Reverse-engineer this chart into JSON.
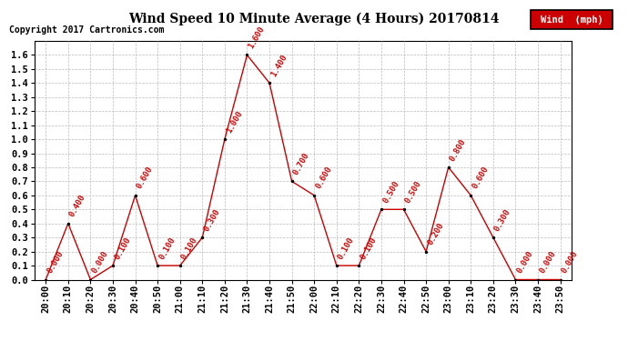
{
  "title": "Wind Speed 10 Minute Average (4 Hours) 20170814",
  "copyright": "Copyright 2017 Cartronics.com",
  "legend_label": "Wind  (mph)",
  "x_labels": [
    "20:00",
    "20:10",
    "20:20",
    "20:30",
    "20:40",
    "20:50",
    "21:00",
    "21:10",
    "21:20",
    "21:30",
    "21:40",
    "21:50",
    "22:00",
    "22:10",
    "22:20",
    "22:30",
    "22:40",
    "22:50",
    "23:00",
    "23:10",
    "23:20",
    "23:30",
    "23:40",
    "23:50"
  ],
  "y_values": [
    0.0,
    0.4,
    0.0,
    0.1,
    0.6,
    0.1,
    0.1,
    0.3,
    1.0,
    1.6,
    1.4,
    0.7,
    0.6,
    0.1,
    0.1,
    0.5,
    0.5,
    0.2,
    0.8,
    0.6,
    0.3,
    0.0,
    0.0,
    0.0
  ],
  "line_color": "#cc0000",
  "marker_color": "#000000",
  "label_color": "#cc0000",
  "grid_color": "#bbbbbb",
  "bg_color": "#ffffff",
  "ylim": [
    0.0,
    1.7
  ],
  "yticks": [
    0.0,
    0.1,
    0.2,
    0.3,
    0.4,
    0.5,
    0.6,
    0.7,
    0.8,
    0.9,
    1.0,
    1.1,
    1.2,
    1.3,
    1.4,
    1.5,
    1.6
  ],
  "legend_bg": "#cc0000",
  "legend_text_color": "#ffffff",
  "title_fontsize": 10,
  "tick_fontsize": 7.5,
  "label_fontsize": 6.5,
  "copyright_fontsize": 7
}
